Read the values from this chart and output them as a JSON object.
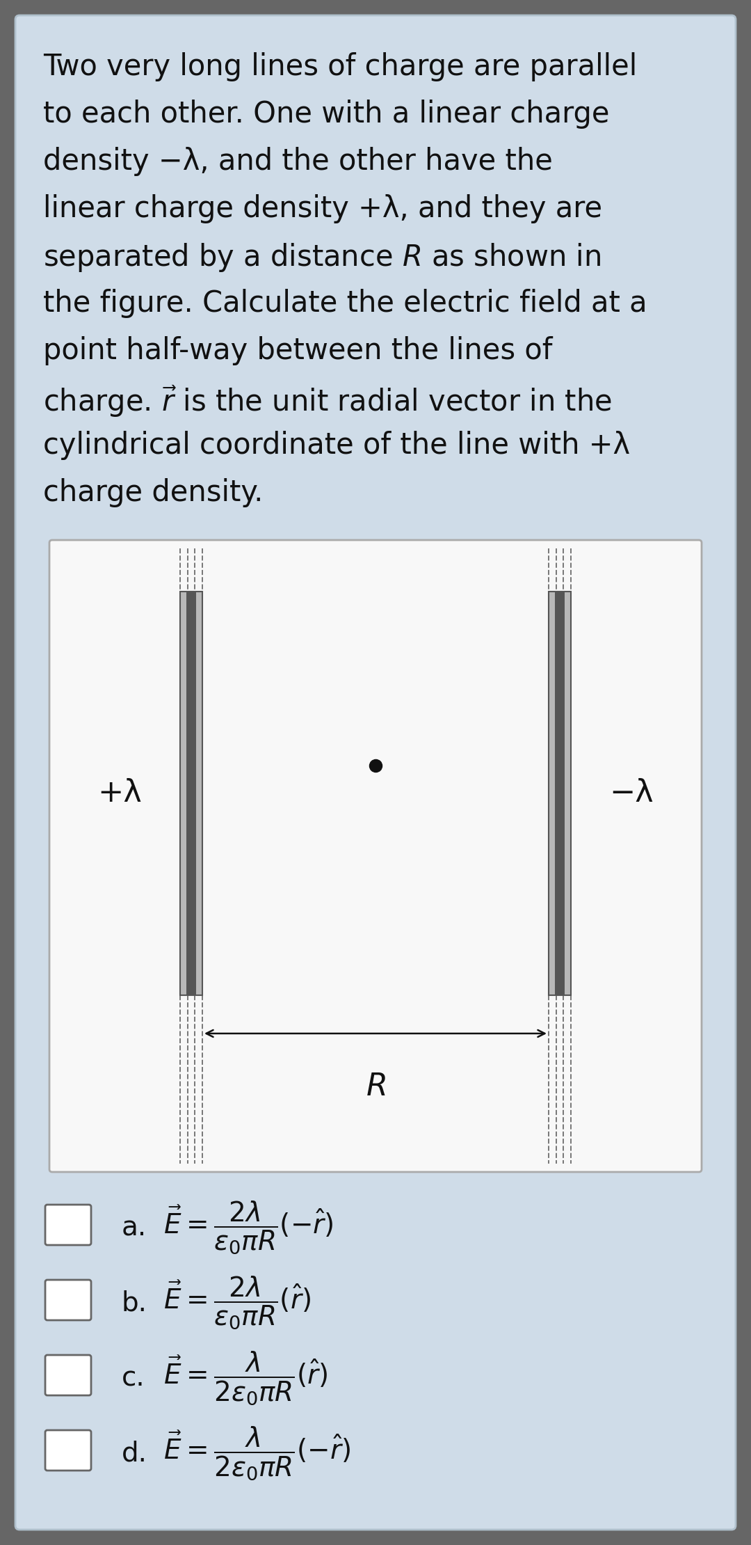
{
  "bg_outer": "#666666",
  "bg_card": "#cfdce8",
  "bg_white": "#f8f8f8",
  "text_color": "#111111",
  "bar_light": "#b8b8b8",
  "bar_dark": "#555555",
  "dashed_color": "#777777",
  "dot_color": "#111111",
  "question_lines": [
    "Two very long lines of charge are parallel",
    "to each other. One with a linear charge",
    "density −λ, and the other have the",
    "linear charge density +λ, and they are",
    "separated by a distance $R$ as shown in",
    "the figure. Calculate the electric field at a",
    "point half-way between the lines of",
    "charge. $\\vec{r}$ is the unit radial vector in the",
    "cylindrical coordinate of the line with +λ",
    "charge density."
  ],
  "plus_label": "+λ",
  "minus_label": "−λ",
  "R_label": "$R$",
  "options": [
    {
      "label": "a.",
      "formula": "$\\vec{E} = \\dfrac{2\\lambda}{\\epsilon_0 \\pi R}(-\\hat{r})$"
    },
    {
      "label": "b.",
      "formula": "$\\vec{E} = \\dfrac{2\\lambda}{\\epsilon_0 \\pi R}(\\hat{r})$"
    },
    {
      "label": "c.",
      "formula": "$\\vec{E} = \\dfrac{\\lambda}{2\\epsilon_0 \\pi R}(\\hat{r})$"
    },
    {
      "label": "d.",
      "formula": "$\\vec{E} = \\dfrac{\\lambda}{2\\epsilon_0 \\pi R}(-\\hat{r})$"
    }
  ]
}
